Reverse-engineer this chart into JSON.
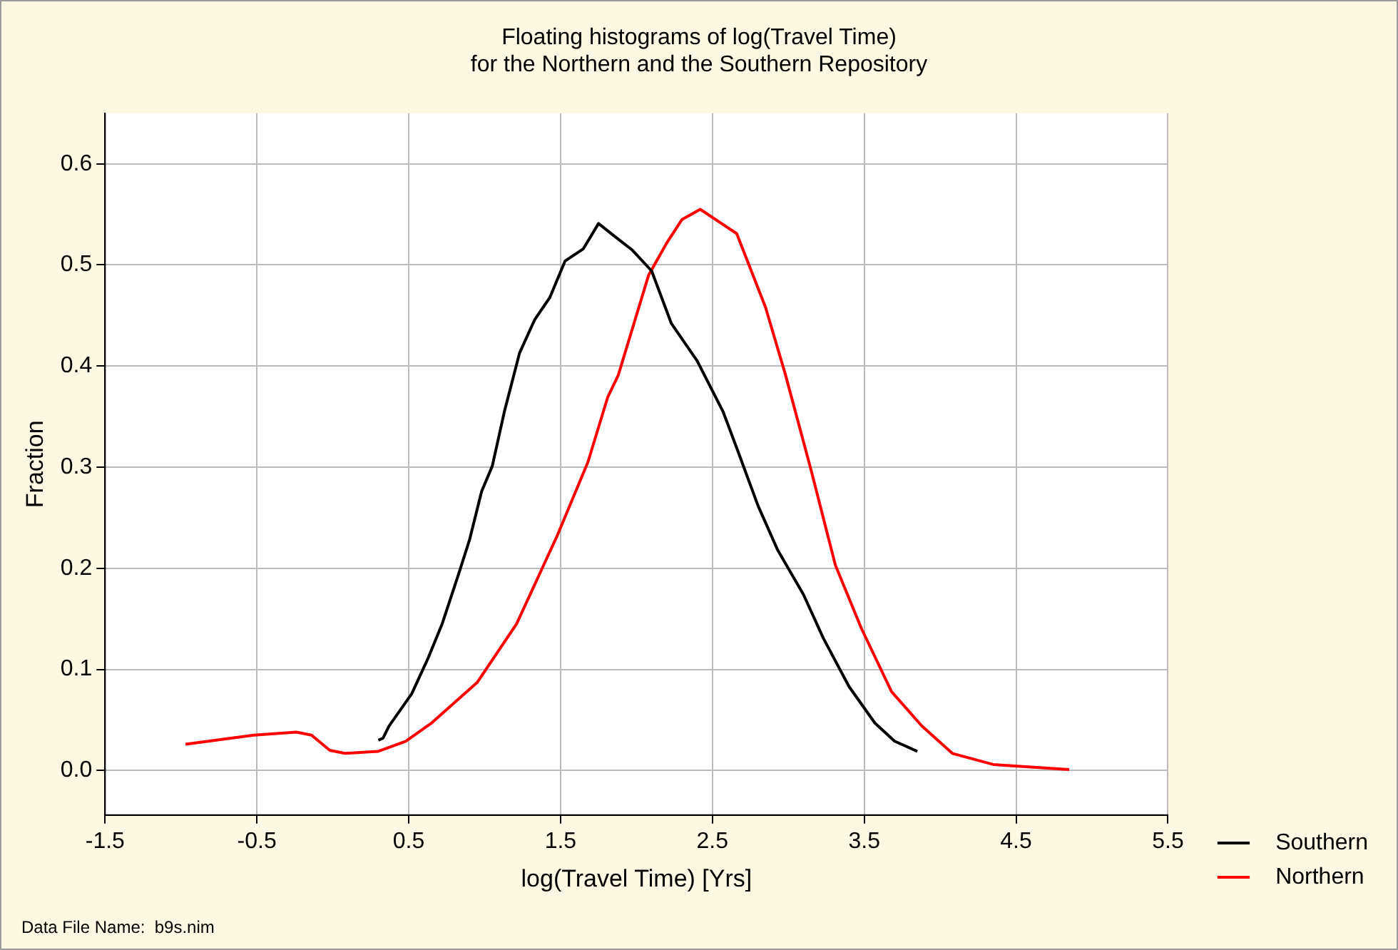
{
  "chart_data": {
    "type": "line",
    "title": "Floating histograms of log(Travel Time)\nfor the Northern and the Southern Repository",
    "xlabel": "log(Travel Time) [Yrs]",
    "ylabel": "Fraction",
    "annotations": [
      "Data File Name:  b9s.nim"
    ],
    "xlim": [
      -1.5,
      5.5
    ],
    "xticks": [
      -1.5,
      -0.5,
      0.5,
      1.5,
      2.5,
      3.5,
      4.5,
      5.5
    ],
    "ylim": [
      -0.044,
      0.65
    ],
    "yticks": [
      {
        "value": 0,
        "label": "0.0"
      },
      {
        "value": 0.1,
        "label": "0.1"
      },
      {
        "value": 0.2,
        "label": "0.2"
      },
      {
        "value": 0.3,
        "label": "0.3"
      },
      {
        "value": 0.4,
        "label": "0.4"
      },
      {
        "value": 0.5,
        "label": "0.5"
      },
      {
        "value": 0.6,
        "label": "0.6"
      }
    ],
    "grid": true,
    "legend": "bottom right",
    "marker": "none",
    "line_style": "solid",
    "series": [
      {
        "name": "Southern",
        "color": "#000000",
        "x": [
          0.3,
          0.33,
          0.37,
          0.52,
          0.63,
          0.72,
          0.83,
          0.9,
          0.98,
          1.05,
          1.13,
          1.23,
          1.33,
          1.43,
          1.53,
          1.65,
          1.75,
          1.85,
          1.97,
          2.1,
          2.23,
          2.4,
          2.57,
          2.67,
          2.8,
          2.93,
          3.1,
          3.23,
          3.4,
          3.57,
          3.7,
          3.85
        ],
        "values": [
          0.03,
          0.032,
          0.044,
          0.076,
          0.112,
          0.145,
          0.195,
          0.228,
          0.276,
          0.301,
          0.355,
          0.413,
          0.446,
          0.468,
          0.504,
          0.516,
          0.541,
          0.529,
          0.515,
          0.494,
          0.442,
          0.405,
          0.355,
          0.315,
          0.262,
          0.218,
          0.174,
          0.131,
          0.083,
          0.047,
          0.029,
          0.019
        ]
      },
      {
        "name": "Northern",
        "color": "#ff0000",
        "x": [
          -0.97,
          -0.52,
          -0.24,
          -0.14,
          -0.02,
          0.08,
          0.3,
          0.48,
          0.65,
          0.95,
          1.21,
          1.48,
          1.68,
          1.81,
          1.88,
          2.08,
          2.2,
          2.3,
          2.42,
          2.66,
          2.85,
          2.98,
          3.15,
          3.31,
          3.48,
          3.68,
          3.88,
          4.08,
          4.35,
          4.85
        ],
        "values": [
          0.026,
          0.035,
          0.038,
          0.035,
          0.02,
          0.017,
          0.019,
          0.029,
          0.047,
          0.087,
          0.145,
          0.233,
          0.305,
          0.369,
          0.391,
          0.49,
          0.522,
          0.545,
          0.555,
          0.531,
          0.458,
          0.392,
          0.297,
          0.203,
          0.141,
          0.078,
          0.044,
          0.017,
          0.006,
          0.001
        ]
      }
    ]
  }
}
